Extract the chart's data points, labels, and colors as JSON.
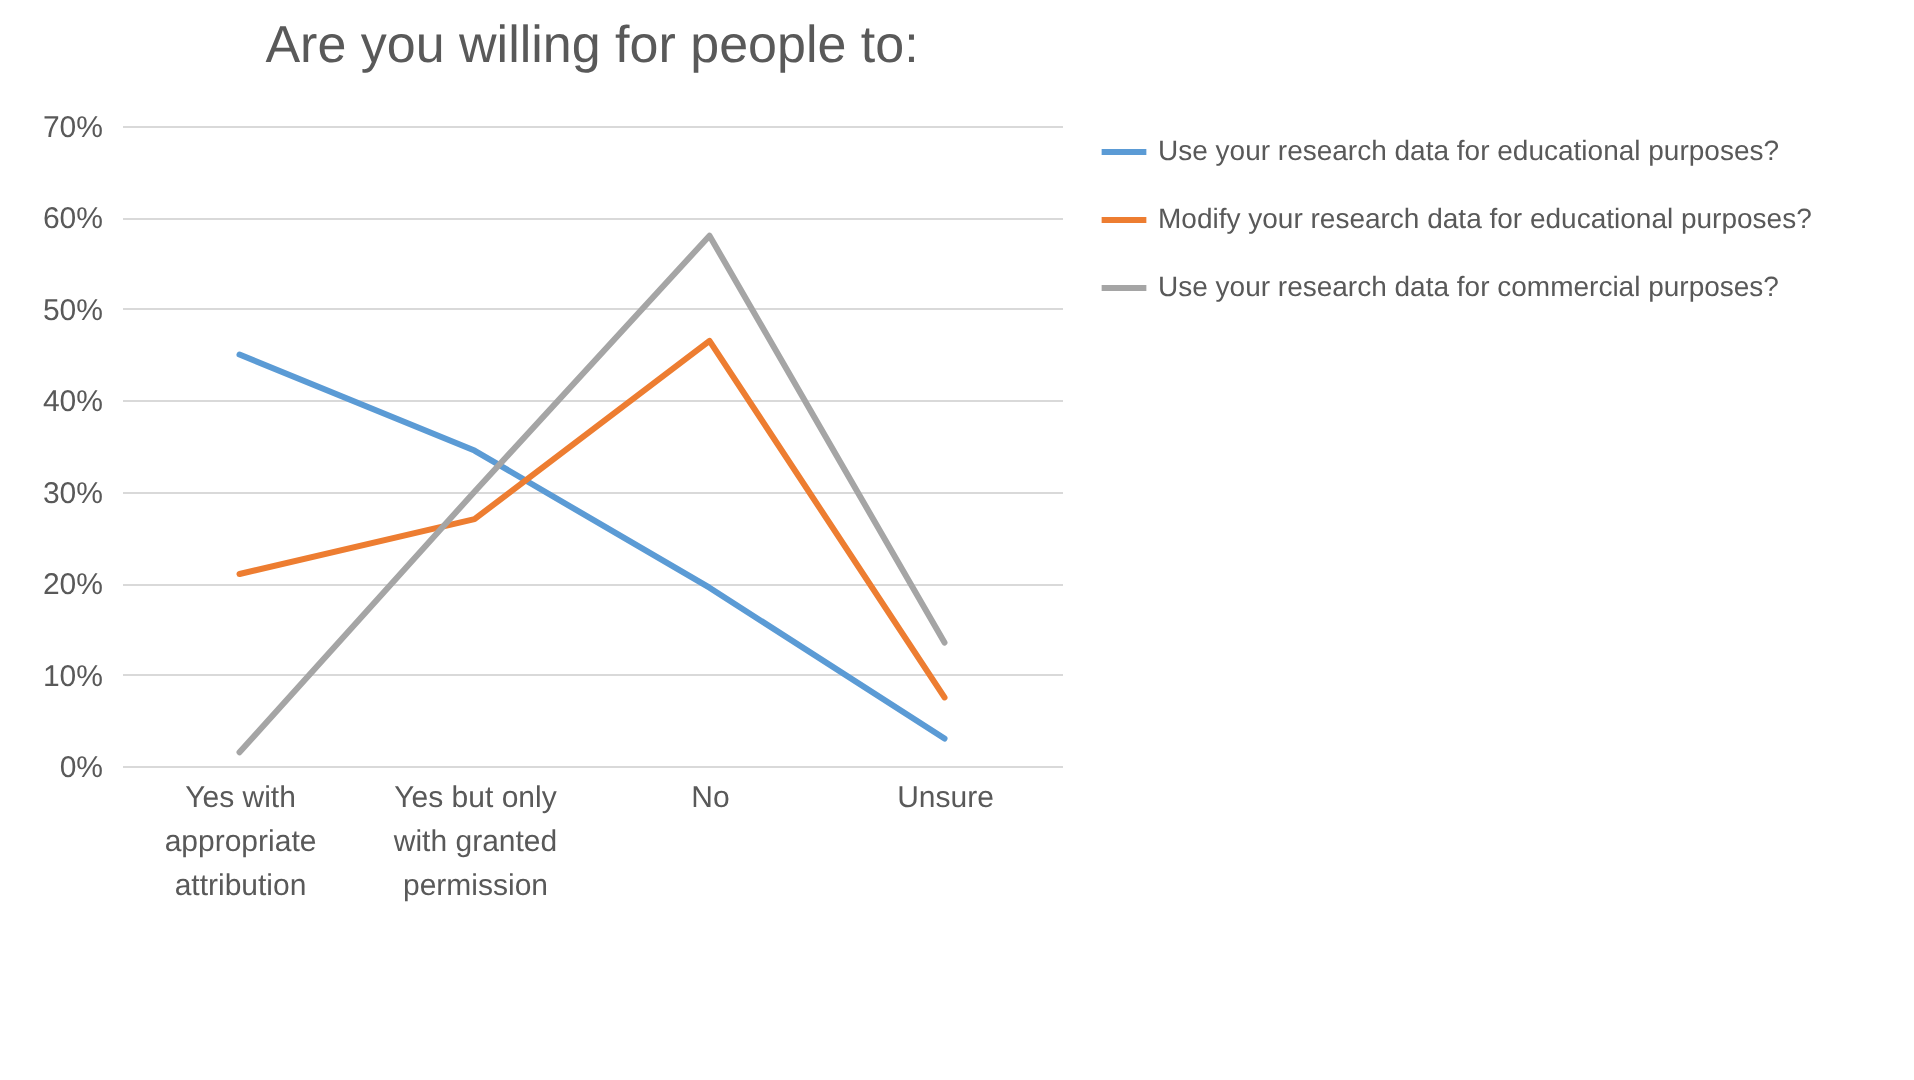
{
  "chart_data": {
    "type": "line",
    "title": "Are you willing for people to:",
    "categories": [
      "Yes with appropriate attribution",
      "Yes but only with granted permission",
      "No",
      "Unsure"
    ],
    "series": [
      {
        "name": "Use your research data for educational purposes?",
        "color": "#5b9bd5",
        "values": [
          45,
          34.5,
          19.5,
          3
        ]
      },
      {
        "name": "Modify your research data for educational purposes?",
        "color": "#ed7d31",
        "values": [
          21,
          27,
          46.5,
          7.5
        ]
      },
      {
        "name": "Use your research data for commercial purposes?",
        "color": "#a5a5a5",
        "values": [
          1.5,
          30,
          58,
          13.5
        ]
      }
    ],
    "ylim": [
      0,
      70
    ],
    "yticks": [
      {
        "value": 0,
        "label": "0%"
      },
      {
        "value": 10,
        "label": "10%"
      },
      {
        "value": 20,
        "label": "20%"
      },
      {
        "value": 30,
        "label": "30%"
      },
      {
        "value": 40,
        "label": "40%"
      },
      {
        "value": 50,
        "label": "50%"
      },
      {
        "value": 60,
        "label": "60%"
      },
      {
        "value": 70,
        "label": "70%"
      }
    ],
    "grid": "y",
    "legend": "right",
    "marker": "none",
    "line_style": "solid"
  }
}
